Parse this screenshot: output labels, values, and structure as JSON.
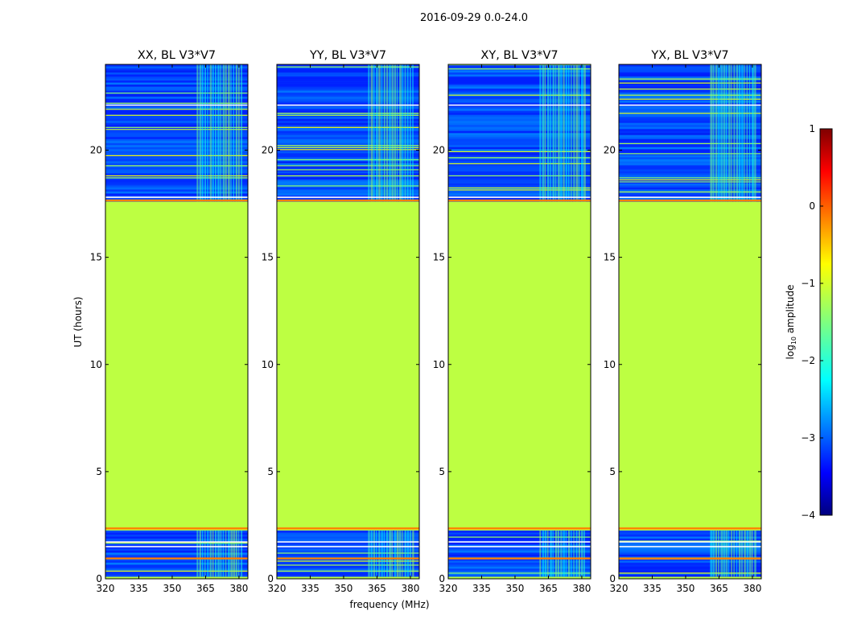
{
  "figure_title": "2016-09-29 0.0-24.0",
  "shared": {
    "xlabel": "frequency (MHz)",
    "ylabel": "UT (hours)",
    "x_tick_labels": [
      "320",
      "335",
      "350",
      "365",
      "380"
    ],
    "y_tick_labels": [
      "0",
      "5",
      "10",
      "15",
      "20"
    ]
  },
  "colorbar": {
    "label": "log",
    "label_sub": "10",
    "label_rest": " amplitude",
    "tick_labels": [
      "1",
      "0",
      "−1",
      "−2",
      "−3",
      "−4"
    ],
    "colormap": "jet"
  },
  "chart_data": [
    {
      "type": "heatmap",
      "title": "XX, BL V3*V7",
      "x_range": [
        320,
        384
      ],
      "y_range": [
        0,
        24
      ],
      "x_ticks": [
        320,
        335,
        350,
        365,
        380
      ],
      "y_ticks": [
        0,
        5,
        10,
        15,
        20
      ],
      "color_range": [
        -4,
        1
      ],
      "flagged_value": -1.2,
      "noise_level": -3.0,
      "rfi_band_mhz": [
        361,
        382
      ],
      "rfi_level": -1.8,
      "flagged_intervals_ut": [
        [
          2.3,
          17.6
        ]
      ],
      "orange_lines_ut": [
        0.95,
        2.35,
        17.65
      ],
      "white_lines_ut": [
        1.5,
        1.72,
        17.8,
        22.1
      ],
      "data_intervals_ut": [
        [
          0.1,
          2.25
        ],
        [
          17.6,
          24.0
        ]
      ]
    },
    {
      "type": "heatmap",
      "title": "YY, BL V3*V7",
      "x_range": [
        320,
        384
      ],
      "y_range": [
        0,
        24
      ],
      "x_ticks": [
        320,
        335,
        350,
        365,
        380
      ],
      "y_ticks": [
        0,
        5,
        10,
        15,
        20
      ],
      "color_range": [
        -4,
        1
      ],
      "flagged_value": -1.2,
      "noise_level": -3.0,
      "rfi_band_mhz": [
        361,
        382
      ],
      "rfi_level": -1.8,
      "flagged_intervals_ut": [
        [
          2.3,
          17.6
        ]
      ],
      "orange_lines_ut": [
        0.95,
        2.35,
        17.65
      ],
      "white_lines_ut": [
        1.5,
        1.72,
        17.8,
        22.1
      ],
      "data_intervals_ut": [
        [
          0.1,
          2.25
        ],
        [
          17.6,
          24.0
        ]
      ]
    },
    {
      "type": "heatmap",
      "title": "XY, BL V3*V7",
      "x_range": [
        320,
        384
      ],
      "y_range": [
        0,
        24
      ],
      "x_ticks": [
        320,
        335,
        350,
        365,
        380
      ],
      "y_ticks": [
        0,
        5,
        10,
        15,
        20
      ],
      "color_range": [
        -4,
        1
      ],
      "flagged_value": -1.2,
      "noise_level": -3.0,
      "rfi_band_mhz": [
        361,
        382
      ],
      "rfi_level": -1.8,
      "flagged_intervals_ut": [
        [
          2.3,
          17.6
        ]
      ],
      "orange_lines_ut": [
        0.95,
        2.35,
        17.65
      ],
      "white_lines_ut": [
        1.5,
        1.72,
        17.8,
        22.1
      ],
      "data_intervals_ut": [
        [
          0.1,
          2.25
        ],
        [
          17.6,
          24.0
        ]
      ]
    },
    {
      "type": "heatmap",
      "title": "YX, BL V3*V7",
      "x_range": [
        320,
        384
      ],
      "y_range": [
        0,
        24
      ],
      "x_ticks": [
        320,
        335,
        350,
        365,
        380
      ],
      "y_ticks": [
        0,
        5,
        10,
        15,
        20
      ],
      "color_range": [
        -4,
        1
      ],
      "flagged_value": -1.2,
      "noise_level": -3.0,
      "rfi_band_mhz": [
        361,
        382
      ],
      "rfi_level": -1.8,
      "flagged_intervals_ut": [
        [
          2.3,
          17.6
        ]
      ],
      "orange_lines_ut": [
        0.95,
        2.35,
        17.65
      ],
      "white_lines_ut": [
        1.5,
        1.72,
        17.8,
        22.1
      ],
      "data_intervals_ut": [
        [
          0.1,
          2.25
        ],
        [
          17.6,
          24.0
        ]
      ]
    }
  ]
}
